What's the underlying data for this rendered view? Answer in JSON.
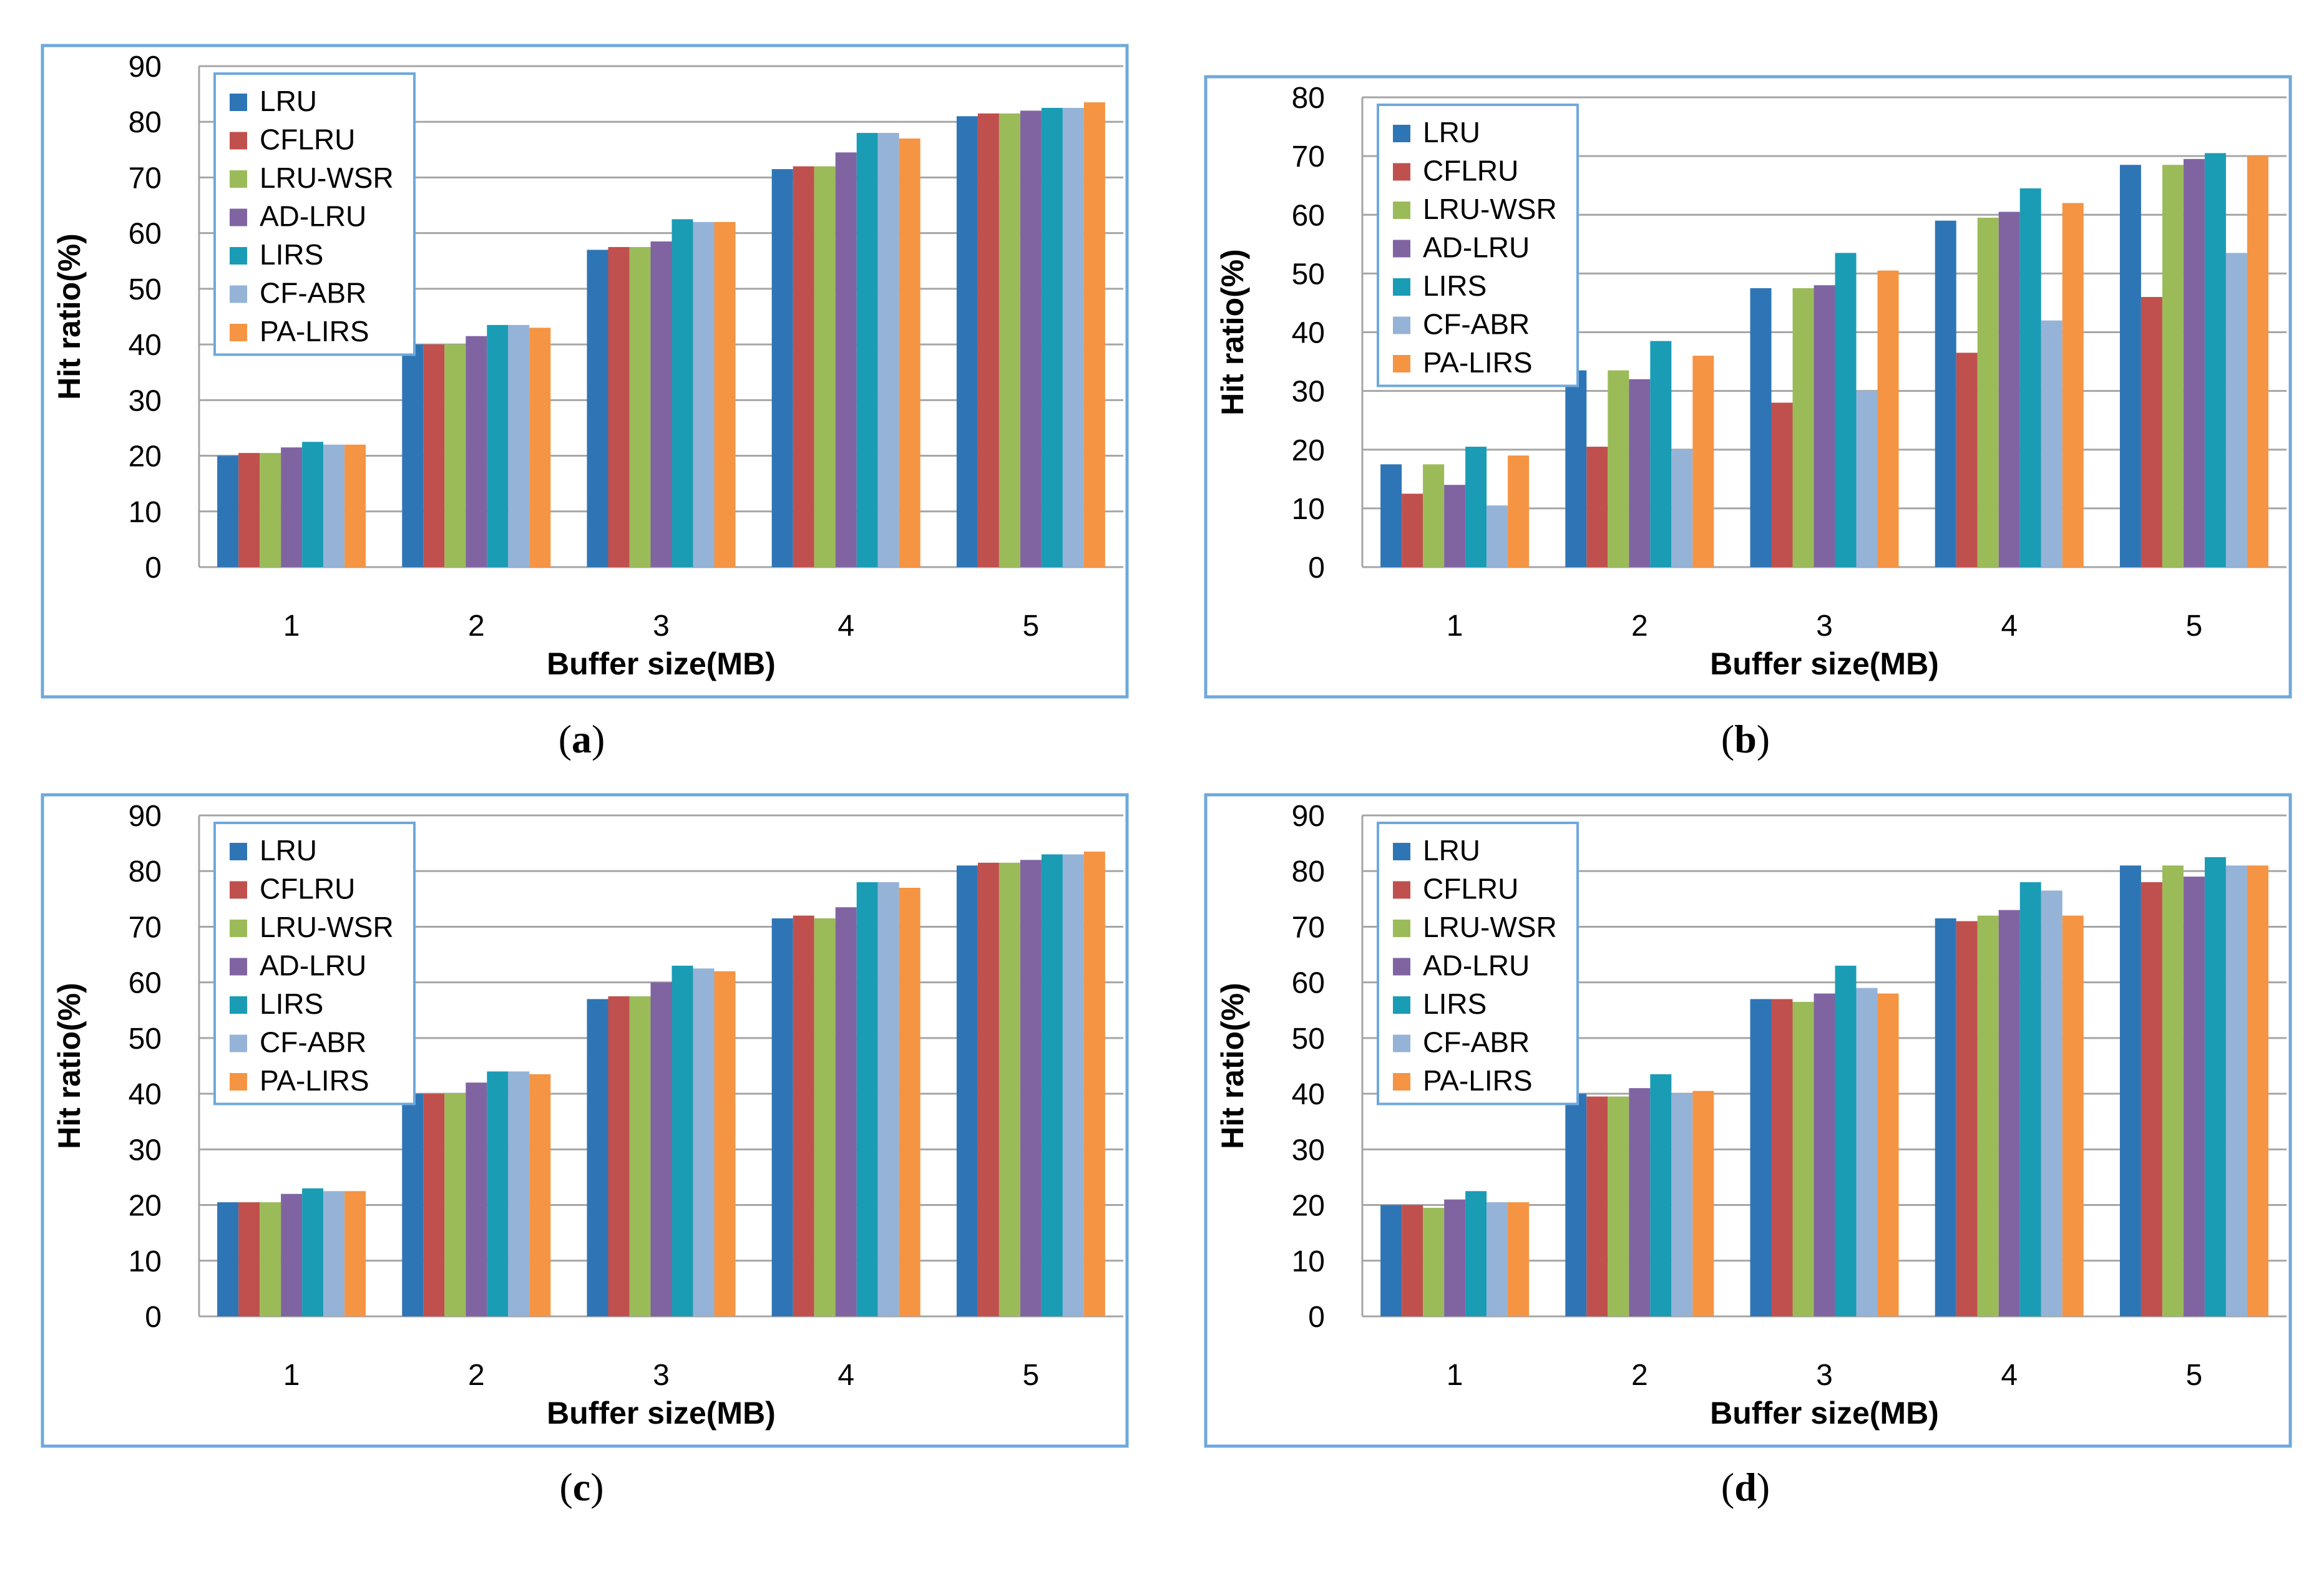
{
  "figure": {
    "series_colors": {
      "LRU": "#2E75B6",
      "CFLRU": "#C0504D",
      "LRU-WSR": "#9BBB59",
      "AD-LRU": "#8064A2",
      "LIRS": "#1A9CB5",
      "CF-ABR": "#95B3D7",
      "PA-LIRS": "#F59443"
    },
    "frame_color": "#6FA8DC",
    "grid_color": "#A6A6A6"
  },
  "captions": {
    "a": {
      "open": "(",
      "letter": "a",
      "close": ")"
    },
    "b": {
      "open": "(",
      "letter": "b",
      "close": ")"
    },
    "c": {
      "open": "(",
      "letter": "c",
      "close": ")"
    },
    "d": {
      "open": "(",
      "letter": "d",
      "close": ")"
    }
  },
  "chart_data": [
    {
      "panel": "a",
      "type": "bar",
      "xlabel": "Buffer size(MB)",
      "ylabel": "Hit ratio(%)",
      "ylim": [
        0,
        90
      ],
      "yticks": [
        0,
        10,
        20,
        30,
        40,
        50,
        60,
        70,
        80,
        90
      ],
      "grid": true,
      "legend": "top-left",
      "categories": [
        "1",
        "2",
        "3",
        "4",
        "5"
      ],
      "series": [
        {
          "name": "LRU",
          "values": [
            20,
            40,
            57,
            71.5,
            81
          ]
        },
        {
          "name": "CFLRU",
          "values": [
            20.5,
            40,
            57.5,
            72,
            81.5
          ]
        },
        {
          "name": "LRU-WSR",
          "values": [
            20.5,
            40,
            57.5,
            72,
            81.5
          ]
        },
        {
          "name": "AD-LRU",
          "values": [
            21.5,
            41.5,
            58.5,
            74.5,
            82
          ]
        },
        {
          "name": "LIRS",
          "values": [
            22.5,
            43.5,
            62.5,
            78,
            82.5
          ]
        },
        {
          "name": "CF-ABR",
          "values": [
            22,
            43.5,
            62,
            78,
            82.5
          ]
        },
        {
          "name": "PA-LIRS",
          "values": [
            22,
            43,
            62,
            77,
            83.5
          ]
        }
      ]
    },
    {
      "panel": "b",
      "type": "bar",
      "xlabel": "Buffer size(MB)",
      "ylabel": "Hit ratio(%)",
      "ylim": [
        0,
        80
      ],
      "yticks": [
        0,
        10,
        20,
        30,
        40,
        50,
        60,
        70,
        80
      ],
      "grid": true,
      "legend": "top-left",
      "categories": [
        "1",
        "2",
        "3",
        "4",
        "5"
      ],
      "series": [
        {
          "name": "LRU",
          "values": [
            17.5,
            33.5,
            47.5,
            59,
            68.5
          ]
        },
        {
          "name": "CFLRU",
          "values": [
            12.5,
            20.5,
            28,
            36.5,
            46
          ]
        },
        {
          "name": "LRU-WSR",
          "values": [
            17.5,
            33.5,
            47.5,
            59.5,
            68.5
          ]
        },
        {
          "name": "AD-LRU",
          "values": [
            14,
            32,
            48,
            60.5,
            69.5
          ]
        },
        {
          "name": "LIRS",
          "values": [
            20.5,
            38.5,
            53.5,
            64.5,
            70.5
          ]
        },
        {
          "name": "CF-ABR",
          "values": [
            10.5,
            20,
            30,
            42,
            53.5
          ]
        },
        {
          "name": "PA-LIRS",
          "values": [
            19,
            36,
            50.5,
            62,
            70
          ]
        }
      ]
    },
    {
      "panel": "c",
      "type": "bar",
      "xlabel": "Buffer size(MB)",
      "ylabel": "Hit ratio(%)",
      "ylim": [
        0,
        90
      ],
      "yticks": [
        0,
        10,
        20,
        30,
        40,
        50,
        60,
        70,
        80,
        90
      ],
      "grid": true,
      "legend": "top-left",
      "categories": [
        "1",
        "2",
        "3",
        "4",
        "5"
      ],
      "series": [
        {
          "name": "LRU",
          "values": [
            20.5,
            40,
            57,
            71.5,
            81
          ]
        },
        {
          "name": "CFLRU",
          "values": [
            20.5,
            40,
            57.5,
            72,
            81.5
          ]
        },
        {
          "name": "LRU-WSR",
          "values": [
            20.5,
            40,
            57.5,
            71.5,
            81.5
          ]
        },
        {
          "name": "AD-LRU",
          "values": [
            22,
            42,
            60,
            73.5,
            82
          ]
        },
        {
          "name": "LIRS",
          "values": [
            23,
            44,
            63,
            78,
            83
          ]
        },
        {
          "name": "CF-ABR",
          "values": [
            22.5,
            44,
            62.5,
            78,
            83
          ]
        },
        {
          "name": "PA-LIRS",
          "values": [
            22.5,
            43.5,
            62,
            77,
            83.5
          ]
        }
      ]
    },
    {
      "panel": "d",
      "type": "bar",
      "xlabel": "Buffer size(MB)",
      "ylabel": "Hit ratio(%)",
      "ylim": [
        0,
        90
      ],
      "yticks": [
        0,
        10,
        20,
        30,
        40,
        50,
        60,
        70,
        80,
        90
      ],
      "grid": true,
      "legend": "top-left",
      "categories": [
        "1",
        "2",
        "3",
        "4",
        "5"
      ],
      "series": [
        {
          "name": "LRU",
          "values": [
            20,
            40,
            57,
            71.5,
            81
          ]
        },
        {
          "name": "CFLRU",
          "values": [
            20,
            39.5,
            57,
            71,
            78
          ]
        },
        {
          "name": "LRU-WSR",
          "values": [
            19.5,
            39.5,
            56.5,
            72,
            81
          ]
        },
        {
          "name": "AD-LRU",
          "values": [
            21,
            41,
            58,
            73,
            79
          ]
        },
        {
          "name": "LIRS",
          "values": [
            22.5,
            43.5,
            63,
            78,
            82.5
          ]
        },
        {
          "name": "CF-ABR",
          "values": [
            20.5,
            40,
            59,
            76.5,
            81
          ]
        },
        {
          "name": "PA-LIRS",
          "values": [
            20.5,
            40.5,
            58,
            72,
            81
          ]
        }
      ]
    }
  ]
}
